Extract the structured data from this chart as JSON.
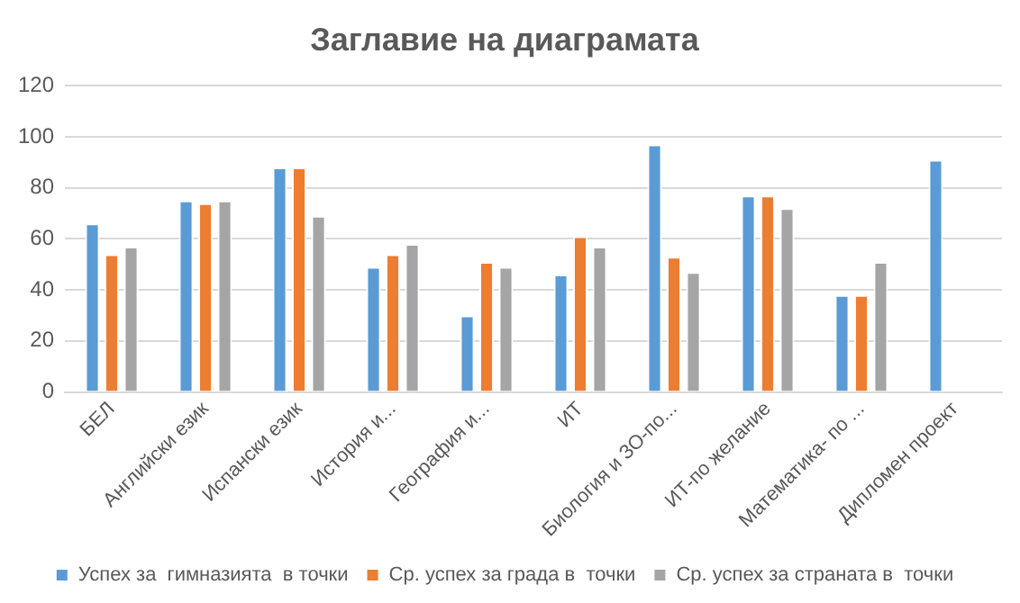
{
  "chart_data": {
    "type": "bar",
    "title": "Заглавие на диаграмата",
    "categories": [
      "БЕЛ",
      "Английски език",
      "Испански език",
      "История и...",
      "География и...",
      "ИТ",
      "Биология и ЗО-по...",
      "ИТ-по желание",
      "Математика- по ...",
      "Дипломен проект"
    ],
    "series": [
      {
        "name": "Успех за  гимназията  в точки",
        "color": "#5b9bd5",
        "values": [
          66,
          75,
          88,
          49,
          30,
          46,
          97,
          77,
          38,
          91
        ]
      },
      {
        "name": "Ср. успех за града в  точки",
        "color": "#ed7d31",
        "values": [
          54,
          74,
          88,
          54,
          51,
          61,
          53,
          77,
          38,
          null
        ]
      },
      {
        "name": "Ср. успех за страната в  точки",
        "color": "#a5a5a5",
        "values": [
          57,
          75,
          69,
          58,
          49,
          57,
          47,
          72,
          51,
          null
        ]
      }
    ],
    "ylim": [
      0,
      120
    ],
    "yticks": [
      0,
      20,
      40,
      60,
      80,
      100,
      120
    ],
    "grid": "y",
    "legend": "bottom"
  }
}
